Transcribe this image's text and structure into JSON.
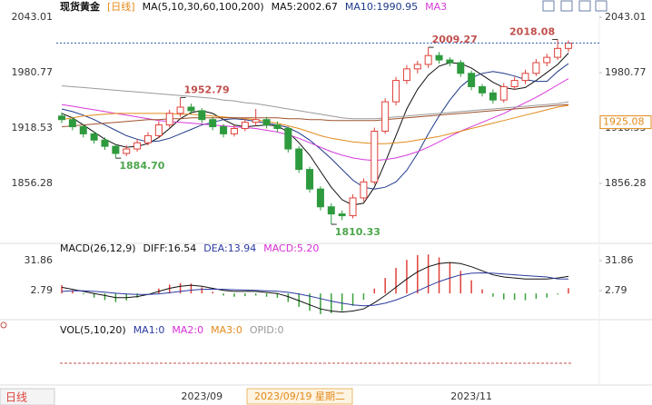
{
  "chart_data": [
    {
      "type": "candlestick",
      "title": "现货黄金",
      "period": "[日线]",
      "indicator": "MA(5,10,30,60,100,200)",
      "categories": [
        null,
        null,
        null,
        null,
        null,
        null,
        null,
        null,
        null,
        null,
        null,
        null,
        null,
        "2023/09",
        null,
        null,
        null,
        null,
        null,
        null,
        null,
        null,
        null,
        null,
        null,
        null,
        null,
        null,
        null,
        null,
        null,
        null,
        null,
        null,
        null,
        null,
        null,
        null,
        "2023/11",
        null,
        null,
        null,
        null,
        null,
        null,
        null,
        null,
        null
      ],
      "open": [
        1932,
        1928,
        1920,
        1912,
        1905,
        1898,
        1890,
        1895,
        1902,
        1910,
        1922,
        1935,
        1942,
        1938,
        1928,
        1920,
        1912,
        1918,
        1925,
        1928,
        1922,
        1918,
        1895,
        1872,
        1850,
        1830,
        1822,
        1820,
        1840,
        1858,
        1915,
        1948,
        1972,
        1985,
        1990,
        2000,
        1995,
        1992,
        1980,
        1965,
        1958,
        1950,
        1965,
        1972,
        1980,
        1992,
        1998,
        2008
      ],
      "high": [
        1936,
        1931,
        1923,
        1915,
        1908,
        1900,
        1899,
        1906,
        1914,
        1926,
        1939,
        1952.79,
        1946,
        1941,
        1931,
        1923,
        1922,
        1929,
        1940,
        1931,
        1926,
        1920,
        1898,
        1875,
        1853,
        1834,
        1826,
        1844,
        1862,
        1919,
        1952,
        1976,
        1989,
        1994,
        2009.27,
        2004,
        1998,
        1995,
        1983,
        1968,
        1962,
        1969,
        1976,
        1984,
        1996,
        2002,
        2018.08,
        2017
      ],
      "low": [
        1924,
        1916,
        1908,
        1901,
        1894,
        1884.7,
        1887,
        1892,
        1899,
        1907,
        1919,
        1931,
        1934,
        1924,
        1916,
        1908,
        1909,
        1915,
        1921,
        1918,
        1914,
        1891,
        1868,
        1846,
        1826,
        1810.33,
        1815,
        1817,
        1836,
        1855,
        1912,
        1944,
        1968,
        1980,
        1986,
        1991,
        1988,
        1976,
        1961,
        1954,
        1946,
        1947,
        1962,
        1968,
        1977,
        1988,
        1995,
        2004
      ],
      "close": [
        1928,
        1920,
        1912,
        1905,
        1898,
        1890,
        1895,
        1902,
        1910,
        1922,
        1935,
        1942,
        1938,
        1928,
        1920,
        1912,
        1918,
        1925,
        1928,
        1922,
        1918,
        1895,
        1872,
        1850,
        1830,
        1822,
        1820,
        1840,
        1858,
        1915,
        1948,
        1972,
        1985,
        1990,
        2000,
        1995,
        1992,
        1980,
        1965,
        1958,
        1950,
        1965,
        1972,
        1980,
        1992,
        1998,
        2008,
        2014
      ],
      "up_color": "#e0403a",
      "down_color": "#2e9a3e",
      "ylim": [
        1792,
        2052.2
      ],
      "yticks": [
        1856.28,
        1918.53,
        1980.77,
        2043.01
      ],
      "grid": false,
      "series": [
        {
          "name": "MA5:2002.67",
          "color": "#111111",
          "values": [
            1935,
            1930,
            1922,
            1914,
            1906,
            1900,
            1897,
            1898,
            1901,
            1908,
            1918,
            1929,
            1936,
            1938,
            1935,
            1928,
            1922,
            1920,
            1921,
            1922,
            1921,
            1914,
            1902,
            1888,
            1870,
            1852,
            1838,
            1832,
            1834,
            1852,
            1880,
            1910,
            1940,
            1962,
            1978,
            1988,
            1992,
            1991,
            1986,
            1978,
            1970,
            1964,
            1962,
            1964,
            1972,
            1981,
            1990,
            2002.67
          ]
        },
        {
          "name": "MA10:1990.95",
          "color": "#1e3a8a",
          "values": [
            1940,
            1937,
            1933,
            1928,
            1922,
            1916,
            1910,
            1906,
            1903,
            1904,
            1907,
            1912,
            1917,
            1922,
            1925,
            1928,
            1929,
            1928,
            1926,
            1924,
            1922,
            1919,
            1913,
            1905,
            1895,
            1884,
            1872,
            1860,
            1852,
            1850,
            1852,
            1858,
            1871,
            1890,
            1912,
            1932,
            1950,
            1965,
            1975,
            1980,
            1982,
            1980,
            1977,
            1973,
            1971,
            1971,
            1982,
            1990.95
          ]
        },
        {
          "name": "MA3",
          "color": "#d63adb",
          "values": [
            1945,
            1943,
            1941,
            1939,
            1937,
            1935,
            1933,
            1931,
            1929,
            1927,
            1926,
            1925,
            1924,
            1923,
            1922,
            1921,
            1920,
            1919,
            1918,
            1916,
            1914,
            1911,
            1907,
            1902,
            1897,
            1892,
            1888,
            1885,
            1883,
            1882,
            1883,
            1885,
            1888,
            1892,
            1897,
            1903,
            1909,
            1915,
            1920,
            1925,
            1930,
            1935,
            1941,
            1947,
            1953,
            1960,
            1967,
            1974
          ]
        },
        {
          "color": "#e38a1b",
          "values": [
            1928,
            1930,
            1932,
            1933,
            1934,
            1935,
            1935,
            1935,
            1935,
            1935,
            1935,
            1934,
            1934,
            1933,
            1932,
            1931,
            1930,
            1929,
            1928,
            1926,
            1924,
            1921,
            1918,
            1914,
            1910,
            1907,
            1905,
            1903,
            1902,
            1901,
            1901,
            1902,
            1903,
            1905,
            1907,
            1909,
            1912,
            1915,
            1918,
            1921,
            1924,
            1927,
            1930,
            1933,
            1936,
            1939,
            1942,
            1944
          ]
        },
        {
          "color": "#a0522d",
          "values": [
            1920,
            1921,
            1922,
            1923,
            1924,
            1925,
            1926,
            1927,
            1928,
            1928,
            1929,
            1929,
            1930,
            1930,
            1930,
            1930,
            1930,
            1930,
            1930,
            1930,
            1930,
            1929,
            1929,
            1928,
            1928,
            1927,
            1927,
            1927,
            1927,
            1927,
            1928,
            1929,
            1930,
            1931,
            1932,
            1933,
            1934,
            1935,
            1936,
            1937,
            1938,
            1939,
            1940,
            1941,
            1942,
            1943,
            1944,
            1945
          ]
        },
        {
          "color": "#9a9a9a",
          "values": [
            1966,
            1965,
            1964,
            1963,
            1962,
            1961,
            1960,
            1959,
            1958,
            1957,
            1956,
            1955,
            1954,
            1953,
            1952,
            1950,
            1949,
            1947,
            1946,
            1944,
            1942,
            1940,
            1938,
            1936,
            1934,
            1932,
            1930,
            1929,
            1929,
            1929,
            1930,
            1931,
            1932,
            1933,
            1934,
            1935,
            1936,
            1937,
            1938,
            1939,
            1940,
            1941,
            1942,
            1943,
            1944,
            1945,
            1946,
            1948
          ]
        }
      ],
      "annotations": [
        {
          "text": "1952.79",
          "color": "#c0504d"
        },
        {
          "text": "1884.70",
          "color": "#4ca64c"
        },
        {
          "text": "1810.33",
          "color": "#4ca64c"
        },
        {
          "text": "2009.27",
          "color": "#c0504d"
        },
        {
          "text": "2018.08",
          "color": "#c0504d"
        }
      ],
      "price_marker": 1925.08,
      "price_marker_color": "#e38a1b",
      "crosshair_label": "2023/09/19 星期二"
    },
    {
      "type": "macd",
      "title": "MACD(26,12,9)",
      "ylim": [
        -21,
        39.8
      ],
      "yticks": [
        2.79,
        31.86
      ],
      "positive_color": "#e0403a",
      "negative_color": "#3aa03a",
      "series": [
        {
          "name": "DIFF:16.54",
          "color": "#111111",
          "values": [
            6,
            4,
            2,
            0,
            -2,
            -4,
            -4,
            -3,
            -1,
            2,
            5,
            7,
            8,
            7,
            5,
            3,
            2,
            2,
            2,
            1,
            0,
            -3,
            -7,
            -11,
            -15,
            -17,
            -18,
            -17,
            -15,
            -9,
            -2,
            6,
            14,
            21,
            26,
            29,
            30,
            29,
            26,
            22,
            18,
            16,
            15,
            14,
            14,
            14,
            15,
            16.54
          ]
        },
        {
          "name": "DEA:13.94",
          "color": "#2b3aa0",
          "values": [
            2,
            2.5,
            2.5,
            2,
            1.2,
            0.2,
            -0.6,
            -1,
            -1,
            -0.4,
            0.7,
            2,
            3.2,
            4,
            4.2,
            4,
            3.6,
            3.3,
            3,
            2.6,
            2.1,
            1.1,
            -0.5,
            -2.6,
            -5,
            -7.4,
            -9.5,
            -11,
            -12,
            -11.4,
            -9.5,
            -6.4,
            -2.3,
            2.4,
            7.1,
            11.5,
            15,
            18,
            19.6,
            20,
            19.6,
            18.9,
            18.1,
            17.3,
            16.6,
            16,
            14.2,
            13.94
          ]
        },
        {
          "name": "MACD:5.20",
          "color": "#d62fd6",
          "values": [
            8,
            3,
            -1,
            -4,
            -6.4,
            -8.4,
            -6.8,
            -4,
            0,
            4.8,
            8.6,
            10,
            9.6,
            6,
            1.6,
            -2,
            -3.2,
            -2.6,
            -2,
            -3.2,
            -4.2,
            -8.2,
            -13,
            -16.8,
            -20,
            -19.2,
            -17,
            -12,
            -6,
            4.8,
            15,
            24.8,
            32.6,
            37.2,
            37.8,
            35,
            30,
            22,
            12.8,
            4,
            -3.2,
            -5.8,
            -6.2,
            -6.6,
            -5.2,
            -4,
            -1,
            5.2
          ]
        }
      ]
    }
  ],
  "volume_panel": {
    "labels": [
      {
        "text": "VOL(5,10,20)",
        "color": "#111111"
      },
      {
        "text": "MA1:0",
        "color": "#2b3aa0"
      },
      {
        "text": "MA2:0",
        "color": "#d62fd6"
      },
      {
        "text": "MA3:0",
        "color": "#e38a1b"
      },
      {
        "text": "OPID:0",
        "color": "#999999"
      }
    ]
  },
  "footer": {
    "period": "日线"
  }
}
